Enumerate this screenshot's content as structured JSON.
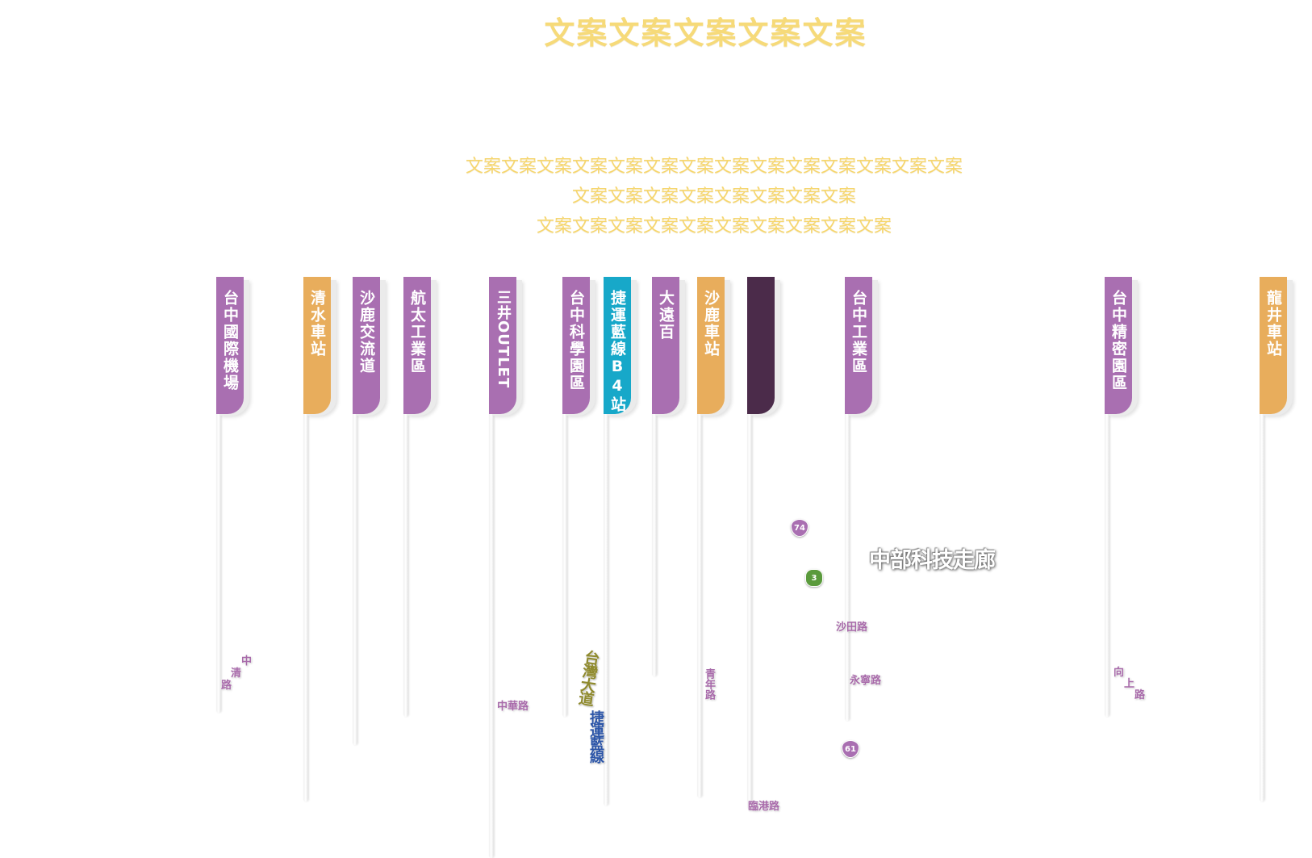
{
  "header": {
    "title": "文案文案文案文案文案",
    "description": [
      "文案文案文案文案文案文案文案文案文案文案文案文案文案文案",
      "文案文案文案文案文案文案文案文案",
      "文案文案文案文案文案文案文案文案文案文案"
    ]
  },
  "colors": {
    "purple": "#a96fb1",
    "orange": "#e8ad5c",
    "cyan": "#17a8c9",
    "dark": "#4b2b4a",
    "title": "#f6da79"
  },
  "markers": [
    {
      "label": "台中國際機場",
      "color": "#a96fb1"
    },
    {
      "label": "清水車站",
      "color": "#e8ad5c"
    },
    {
      "label": "沙鹿交流道",
      "color": "#a96fb1"
    },
    {
      "label": "航太工業區",
      "color": "#a96fb1"
    },
    {
      "label": "三井OUTLET",
      "color": "#a96fb1"
    },
    {
      "label": "台中科學園區",
      "color": "#a96fb1"
    },
    {
      "label": "捷運藍線B4站",
      "color": "#17a8c9"
    },
    {
      "label": "大遠百",
      "color": "#a96fb1"
    },
    {
      "label": "沙鹿車站",
      "color": "#e8ad5c"
    },
    {
      "label": "",
      "color": "#4b2b4a"
    },
    {
      "label": "台中工業區",
      "color": "#a96fb1"
    },
    {
      "label": "台中精密園區",
      "color": "#a96fb1"
    },
    {
      "label": "龍井車站",
      "color": "#e8ad5c"
    }
  ],
  "roads": {
    "zhongqing": [
      "中",
      "清",
      "路"
    ],
    "zhonghua": "中華路",
    "taiwan_blvd": "台灣大道",
    "mrt_blue": "捷運藍線",
    "qingnian": "青年路",
    "shatian": "沙田路",
    "yongning": "永寧路",
    "xiangshang": [
      "向",
      "上",
      "路"
    ],
    "lingang": "臨港路"
  },
  "corridor": "中部科技走廊",
  "shields": [
    {
      "number": "74",
      "color": "#a96fb1"
    },
    {
      "number": "3",
      "color": "#5a9a3c"
    },
    {
      "number": "61",
      "color": "#a96fb1"
    }
  ]
}
